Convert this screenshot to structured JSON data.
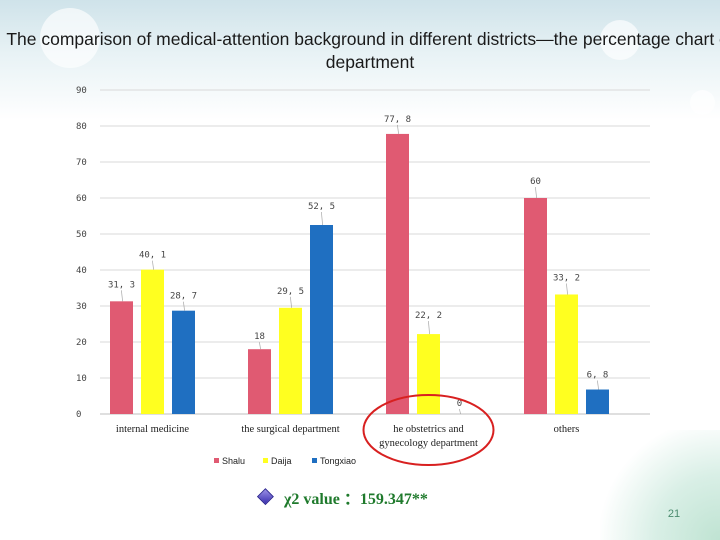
{
  "chart_data": {
    "type": "bar",
    "title": "The comparison of medical-attention background in different districts—the percentage chart of department",
    "categories": [
      "internal medicine",
      "the surgical department",
      "he obstetrics and gynecology department",
      "others"
    ],
    "series": [
      {
        "name": "Shalu",
        "color": "#e05a72",
        "values": [
          31.3,
          18,
          77.8,
          60
        ]
      },
      {
        "name": "Daija",
        "color": "#ffff20",
        "values": [
          40.1,
          29.5,
          22.2,
          33.2
        ]
      },
      {
        "name": "Tongxiao",
        "color": "#1f6fc1",
        "values": [
          28.7,
          52.5,
          0,
          6.8
        ]
      }
    ],
    "value_labels": [
      [
        "31, 3",
        "18",
        "77, 8",
        "60"
      ],
      [
        "40, 1",
        "29, 5",
        "22, 2",
        "33, 2"
      ],
      [
        "28, 7",
        "52, 5",
        "0",
        "6, 8"
      ]
    ],
    "y_ticks": [
      "0",
      "10",
      "20",
      "30",
      "40",
      "50",
      "60",
      "70",
      "80",
      "90"
    ],
    "ylim": [
      0,
      90
    ],
    "legend_position": "bottom",
    "xlabel": "",
    "ylabel": ""
  },
  "footnote": {
    "text": "χ2 value ：159.347**",
    "icon": "diamond-bullet-icon"
  },
  "page_number": "21",
  "highlight": {
    "shape": "ellipse",
    "color": "#d82020",
    "target_category_index": 2
  }
}
